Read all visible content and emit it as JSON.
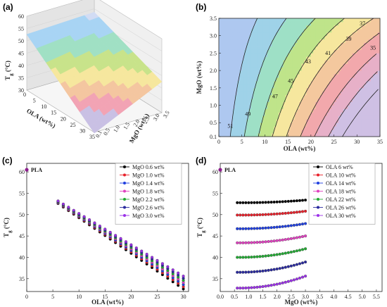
{
  "chart_data": [
    {
      "panel": "(a)",
      "type": "surface",
      "xlabel": "OLA (wt%)",
      "ylabel": "MgO (wt%)",
      "zlabel": "T_g (°C)",
      "xlim": [
        0,
        35
      ],
      "ylim": [
        0.1,
        3.5
      ],
      "zlim": [
        30,
        60
      ],
      "x_ticks": [
        "0",
        "5",
        "10",
        "15",
        "20",
        "25",
        "30",
        "35"
      ],
      "y_ticks": [
        "0.1",
        "0.5",
        "1.0",
        "1.5",
        "2.0",
        "2.5",
        "3.0",
        "3.5"
      ],
      "z_ticks": [
        "30",
        "35",
        "40",
        "45",
        "50",
        "55",
        "60"
      ],
      "corners": {
        "ola0_mgo0.1": 52.5,
        "ola35_mgo0.1": 31.5,
        "ola0_mgo3.5": 54,
        "ola35_mgo3.5": 36
      },
      "band_colors": [
        "#c9c0e4",
        "#f2a3b4",
        "#f4c6a0",
        "#f6e79e",
        "#c8e38a",
        "#a0e0c4",
        "#a8d4f4",
        "#d2dcf4"
      ]
    },
    {
      "panel": "(b)",
      "type": "contour",
      "xlabel": "OLA (wt%)",
      "ylabel": "MgO (wt%)",
      "xlim": [
        0,
        35
      ],
      "ylim": [
        0.1,
        3.5
      ],
      "x_ticks": [
        "0",
        "5",
        "10",
        "15",
        "20",
        "25",
        "30",
        "35"
      ],
      "y_ticks": [
        "0.1",
        "0.5",
        "1.0",
        "1.5",
        "2.0",
        "2.5",
        "3.0",
        "3.5"
      ],
      "contour_levels": [
        35,
        37,
        39,
        41,
        43,
        45,
        47,
        49,
        51
      ],
      "contour_labels": [
        {
          "text": "51",
          "ola": 2.5,
          "mgo": 0.35
        },
        {
          "text": "49",
          "ola": 6.3,
          "mgo": 0.7
        },
        {
          "text": "47",
          "ola": 12.2,
          "mgo": 1.2
        },
        {
          "text": "45",
          "ola": 15.6,
          "mgo": 1.65
        },
        {
          "text": "43",
          "ola": 19.4,
          "mgo": 2.2
        },
        {
          "text": "41",
          "ola": 23.7,
          "mgo": 2.45
        },
        {
          "text": "39",
          "ola": 28.2,
          "mgo": 2.85
        },
        {
          "text": "37",
          "ola": 31.2,
          "mgo": 3.3
        },
        {
          "text": "35",
          "ola": 33.5,
          "mgo": 2.6
        }
      ],
      "band_colors": [
        "#aec8f0",
        "#9fd2e8",
        "#9ee0c6",
        "#bfe48a",
        "#f6e79e",
        "#f4c89e",
        "#f2a8ac",
        "#e7b0c8",
        "#cfc0e4"
      ]
    },
    {
      "panel": "(c)",
      "type": "scatter",
      "xlabel": "OLA (wt%)",
      "ylabel": "T_g (°C)",
      "xlim": [
        0,
        31
      ],
      "ylim": [
        32,
        62
      ],
      "x_ticks": [
        0,
        5,
        10,
        15,
        20,
        25,
        30
      ],
      "y_ticks": [
        35,
        40,
        45,
        50,
        55,
        60
      ],
      "x": [
        6,
        7,
        8,
        9,
        10,
        11,
        12,
        13,
        14,
        15,
        16,
        17,
        18,
        19,
        20,
        21,
        22,
        23,
        24,
        25,
        26,
        27,
        28,
        29,
        30
      ],
      "reference": {
        "name": "PLA",
        "x": 0,
        "y": 60.5,
        "color": "#8e1f8e"
      },
      "series": [
        {
          "name": "MgO 0.6 wt%",
          "color": "#000000",
          "y0": 52.6,
          "y1": 32.6
        },
        {
          "name": "MgO 1.0 wt%",
          "color": "#e8202a",
          "y0": 52.7,
          "y1": 33.1
        },
        {
          "name": "MgO 1.4 wt%",
          "color": "#1f3fe0",
          "y0": 52.8,
          "y1": 33.6
        },
        {
          "name": "MgO 1.8 wt%",
          "color": "#e040c0",
          "y0": 52.9,
          "y1": 34.1
        },
        {
          "name": "MgO 2.2 wt%",
          "color": "#22aa33",
          "y0": 53.0,
          "y1": 34.6
        },
        {
          "name": "MgO 2.6 wt%",
          "color": "#2a2a9e",
          "y0": 53.1,
          "y1": 35.1
        },
        {
          "name": "MgO 3.0 wt%",
          "color": "#9b30e8",
          "y0": 53.2,
          "y1": 35.6
        }
      ]
    },
    {
      "panel": "(d)",
      "type": "scatter",
      "xlabel": "MgO (wt%)",
      "ylabel": "T_g (°C)",
      "xlim": [
        0,
        5.7
      ],
      "ylim": [
        32,
        62
      ],
      "x_ticks": [
        "0.0",
        "0.5",
        "1.0",
        "1.5",
        "2.0",
        "2.5",
        "3.0",
        "3.5",
        "4.0",
        "4.5",
        "5.0",
        "5.5"
      ],
      "y_ticks": [
        35,
        40,
        45,
        50,
        55,
        60
      ],
      "x": [
        0.6,
        0.7,
        0.8,
        0.9,
        1.0,
        1.1,
        1.2,
        1.3,
        1.4,
        1.5,
        1.6,
        1.7,
        1.8,
        1.9,
        2.0,
        2.1,
        2.2,
        2.3,
        2.4,
        2.5,
        2.6,
        2.7,
        2.8,
        2.9,
        3.0
      ],
      "reference": {
        "name": "PLA",
        "x": 0,
        "y": 60.5,
        "color": "#8e1f8e"
      },
      "series": [
        {
          "name": "OLA 6 wt%",
          "color": "#000000",
          "base": 52.8,
          "gain": 0.6
        },
        {
          "name": "OLA 10 wt%",
          "color": "#e8202a",
          "base": 49.9,
          "gain": 0.9
        },
        {
          "name": "OLA 14 wt%",
          "color": "#1f3fe0",
          "base": 46.7,
          "gain": 1.2
        },
        {
          "name": "OLA 18 wt%",
          "color": "#e040c0",
          "base": 43.4,
          "gain": 1.6
        },
        {
          "name": "OLA 22 wt%",
          "color": "#22aa33",
          "base": 40.0,
          "gain": 2.0
        },
        {
          "name": "OLA 26 wt%",
          "color": "#2a2a9e",
          "base": 36.5,
          "gain": 2.4
        },
        {
          "name": "OLA 30 wt%",
          "color": "#9b30e8",
          "base": 32.8,
          "gain": 2.8
        }
      ]
    }
  ]
}
